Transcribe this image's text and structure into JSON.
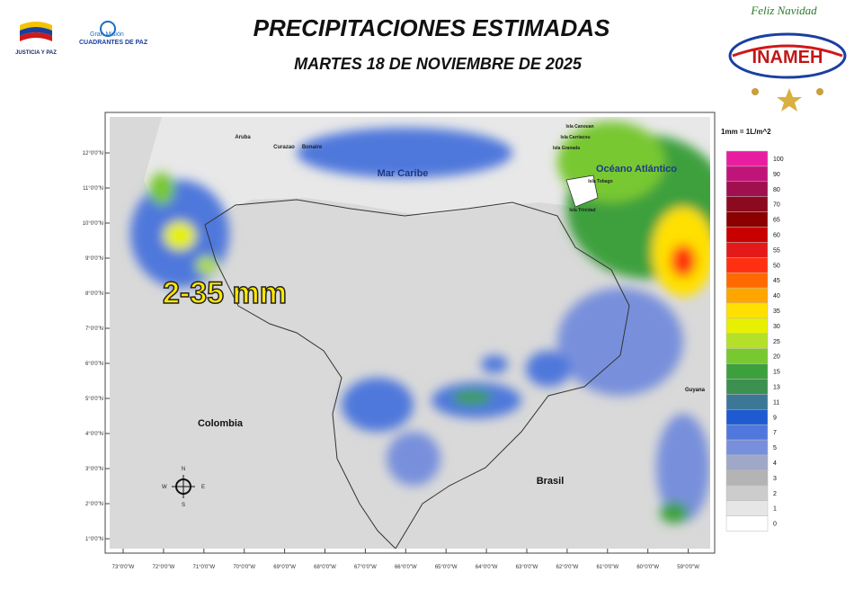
{
  "header": {
    "title": "PRECIPITACIONES ESTIMADAS",
    "subtitle": "MARTES 18 DE NOVIEMBRE  DE 2025",
    "logo_left": {
      "text": "JUSTICIA Y PAZ"
    },
    "logo_mid": {
      "line1": "Gran Misión",
      "line2": "CUADRANTES DE PAZ"
    },
    "logo_right": {
      "greeting": "Feliz Navidad",
      "name": "INAMEH"
    }
  },
  "map": {
    "highlight": "2-35 mm",
    "labels": [
      "Mar Caribe",
      "Océano Atlántico",
      "Colombia",
      "Brasil",
      "Guyana",
      "Aruba",
      "Curazao",
      "Bonaire",
      "Isla Canouan",
      "Isla Carriacou",
      "Isla Granada",
      "Isla Tobago",
      "Isla Trinidad"
    ],
    "lat_labels": [
      "12°0'0\"N",
      "11°0'0\"N",
      "10°0'0\"N",
      "9°0'0\"N",
      "8°0'0\"N",
      "7°0'0\"N",
      "6°0'0\"N",
      "5°0'0\"N",
      "4°0'0\"N",
      "3°0'0\"N",
      "2°0'0\"N",
      "1°0'0\"N"
    ],
    "lon_labels": [
      "73°0'0\"W",
      "72°0'0\"W",
      "71°0'0\"W",
      "70°0'0\"W",
      "69°0'0\"W",
      "68°0'0\"W",
      "67°0'0\"W",
      "66°0'0\"W",
      "65°0'0\"W",
      "64°0'0\"W",
      "63°0'0\"W",
      "62°0'0\"W",
      "61°0'0\"W",
      "60°0'0\"W",
      "59°0'0\"W"
    ],
    "compass": {
      "n": "N",
      "s": "S",
      "e": "E",
      "w": "W"
    }
  },
  "legend": {
    "unit": "1mm = 1L/m^2",
    "items": [
      {
        "value": 100,
        "color": "#e81ea0"
      },
      {
        "value": 90,
        "color": "#c0147a"
      },
      {
        "value": 80,
        "color": "#a0104e"
      },
      {
        "value": 70,
        "color": "#8b0a1e"
      },
      {
        "value": 65,
        "color": "#8b0000"
      },
      {
        "value": 60,
        "color": "#c80000"
      },
      {
        "value": 55,
        "color": "#e41a1a"
      },
      {
        "value": 50,
        "color": "#ff3010"
      },
      {
        "value": 45,
        "color": "#ff6a00"
      },
      {
        "value": 40,
        "color": "#ffa500"
      },
      {
        "value": 35,
        "color": "#ffe000"
      },
      {
        "value": 30,
        "color": "#e6f000"
      },
      {
        "value": 25,
        "color": "#b4e02a"
      },
      {
        "value": 20,
        "color": "#78c832"
      },
      {
        "value": 15,
        "color": "#3ca03c"
      },
      {
        "value": 13,
        "color": "#3c9050"
      },
      {
        "value": 11,
        "color": "#3c7896"
      },
      {
        "value": 9,
        "color": "#1e5ad2"
      },
      {
        "value": 7,
        "color": "#5078dc"
      },
      {
        "value": 5,
        "color": "#7890dc"
      },
      {
        "value": 4,
        "color": "#a0a8c8"
      },
      {
        "value": 3,
        "color": "#b4b4b4"
      },
      {
        "value": 2,
        "color": "#cccccc"
      },
      {
        "value": 1,
        "color": "#e6e6e6"
      },
      {
        "value": 0,
        "color": "#ffffff"
      }
    ]
  }
}
